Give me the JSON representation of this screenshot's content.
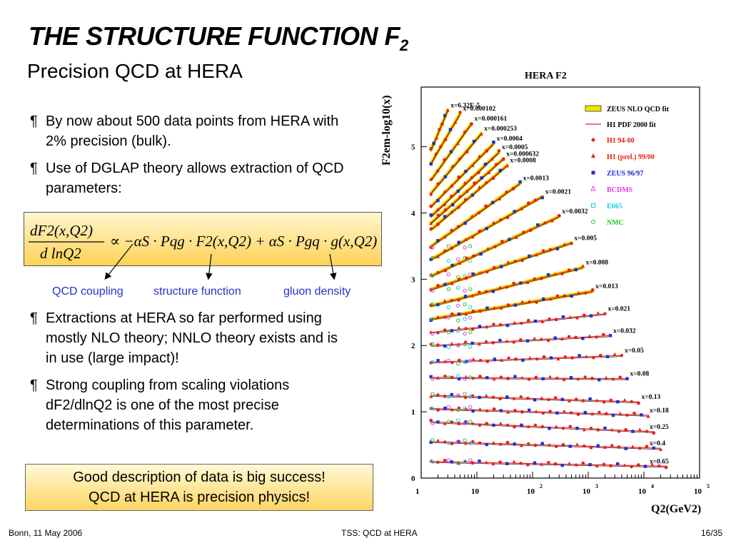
{
  "slide": {
    "title": "THE STRUCTURE FUNCTION F",
    "title_sub": "2",
    "subtitle": "Precision QCD at HERA",
    "bullet_mark": "¶",
    "bullets": [
      "By now about 500 data points from HERA with 2% precision (bulk).",
      "Use of DGLAP theory allows extraction of QCD parameters:"
    ],
    "equation": {
      "numerator": "dF2(x,Q2)",
      "denominator": "d lnQ2",
      "rhs": "∝ −αS · Pqg · F2(x,Q2) + αS · Pgq · g(x,Q2)"
    },
    "annotations": [
      "QCD coupling",
      "structure function",
      "gluon density"
    ],
    "bullets2": [
      "Extractions at HERA so far performed using mostly NLO theory; NNLO theory exists and is in use (large impact)!",
      "Strong coupling from scaling violations dF2/dlnQ2 is one of the most precise determinations of this parameter."
    ],
    "conclusion": [
      "Good description of data is big success!",
      "QCD at HERA is precision physics!"
    ],
    "footer": {
      "left": "Bonn, 11 May 2006",
      "center": "TSS: QCD at HERA",
      "right": "16/35"
    }
  },
  "chart_data": {
    "type": "scatter",
    "title": "HERA F2",
    "ylabel": "F2em-log10(x)",
    "xlabel": "Q2(GeV2)",
    "x_log": true,
    "xlim": [
      1,
      100000
    ],
    "ylim": [
      0,
      5.9
    ],
    "x_ticks": [
      "1",
      "10",
      "10^2",
      "10^3",
      "10^4",
      "10^5"
    ],
    "y_ticks": [
      "0",
      "1",
      "2",
      "3",
      "4",
      "5"
    ],
    "legend_placement": "top-right",
    "legend": [
      {
        "name": "ZEUS NLO QCD fit",
        "style": "band",
        "color": "#f2e200"
      },
      {
        "name": "H1 PDF 2000 fit",
        "style": "line",
        "color": "#e8201a"
      },
      {
        "name": "H1 94-00",
        "style": "circle",
        "color": "#e8201a"
      },
      {
        "name": "H1 (prel.) 99/00",
        "style": "triangle",
        "color": "#e8201a"
      },
      {
        "name": "ZEUS 96/97",
        "style": "square",
        "color": "#1c2fd6"
      },
      {
        "name": "BCDMS",
        "style": "open-triangle",
        "color": "#e23fe2"
      },
      {
        "name": "E665",
        "style": "open-square",
        "color": "#19c8e6"
      },
      {
        "name": "NMC",
        "style": "open-circle",
        "color": "#2ac42a"
      }
    ],
    "series": [
      {
        "label": "x=6.32E-5",
        "q2": [
          1.5,
          3
        ],
        "f2": [
          4.95,
          5.55
        ]
      },
      {
        "label": "x=0.000102",
        "q2": [
          1.5,
          5
        ],
        "f2": [
          4.75,
          5.5
        ]
      },
      {
        "label": "x=0.000161",
        "q2": [
          1.5,
          8
        ],
        "f2": [
          4.5,
          5.35
        ]
      },
      {
        "label": "x=0.000253",
        "q2": [
          1.5,
          12
        ],
        "f2": [
          4.3,
          5.2
        ]
      },
      {
        "label": "x=0.0004",
        "q2": [
          1.5,
          20
        ],
        "f2": [
          4.1,
          5.05
        ]
      },
      {
        "label": "x=0.0005",
        "q2": [
          1.5,
          25
        ],
        "f2": [
          3.95,
          4.92
        ]
      },
      {
        "label": "x=0.000632",
        "q2": [
          1.5,
          30
        ],
        "f2": [
          3.85,
          4.82
        ]
      },
      {
        "label": "x=0.0008",
        "q2": [
          1.5,
          35
        ],
        "f2": [
          3.75,
          4.72
        ]
      },
      {
        "label": "x=0.0013",
        "q2": [
          1.5,
          60
        ],
        "f2": [
          3.5,
          4.45
        ]
      },
      {
        "label": "x=0.0021",
        "q2": [
          1.5,
          150
        ],
        "f2": [
          3.3,
          4.25
        ]
      },
      {
        "label": "x=0.0032",
        "q2": [
          1.5,
          300
        ],
        "f2": [
          3.05,
          3.95
        ]
      },
      {
        "label": "x=0.005",
        "q2": [
          1.5,
          500
        ],
        "f2": [
          2.85,
          3.55
        ]
      },
      {
        "label": "x=0.008",
        "q2": [
          1.5,
          800
        ],
        "f2": [
          2.6,
          3.18
        ]
      },
      {
        "label": "x=0.013",
        "q2": [
          1.5,
          1200
        ],
        "f2": [
          2.4,
          2.82
        ]
      },
      {
        "label": "x=0.021",
        "q2": [
          1.5,
          2000
        ],
        "f2": [
          2.2,
          2.48
        ]
      },
      {
        "label": "x=0.032",
        "q2": [
          1.5,
          2500
        ],
        "f2": [
          2.0,
          2.15
        ]
      },
      {
        "label": "x=0.05",
        "q2": [
          1.5,
          4000
        ],
        "f2": [
          1.75,
          1.85
        ]
      },
      {
        "label": "x=0.08",
        "q2": [
          1.5,
          5000
        ],
        "f2": [
          1.52,
          1.5
        ]
      },
      {
        "label": "x=0.13",
        "q2": [
          1.5,
          8000
        ],
        "f2": [
          1.25,
          1.15
        ]
      },
      {
        "label": "x=0.18",
        "q2": [
          1.5,
          12000
        ],
        "f2": [
          1.05,
          0.95
        ]
      },
      {
        "label": "x=0.25",
        "q2": [
          1.5,
          15000
        ],
        "f2": [
          0.85,
          0.7
        ]
      },
      {
        "label": "x=0.4",
        "q2": [
          1.5,
          20000
        ],
        "f2": [
          0.55,
          0.45
        ]
      },
      {
        "label": "x=0.65",
        "q2": [
          1.5,
          25000
        ],
        "f2": [
          0.25,
          0.18
        ]
      }
    ]
  }
}
